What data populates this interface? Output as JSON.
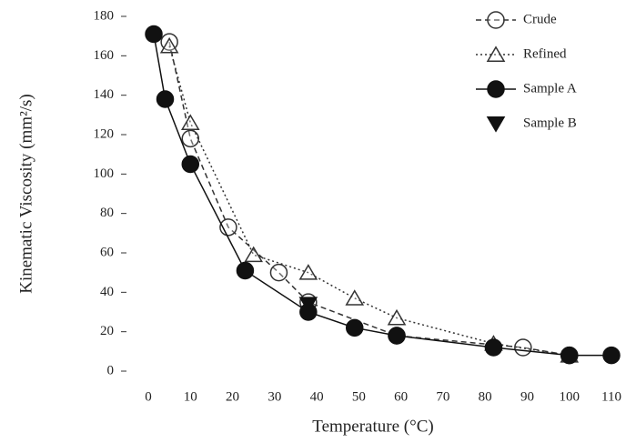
{
  "chart_data": {
    "type": "scatter",
    "x_label": "Temperature (°C)",
    "y_label": "Kinematic Viscosity (mm²/s)",
    "xlim": [
      0,
      110
    ],
    "xticks": [
      0,
      10,
      20,
      30,
      40,
      50,
      60,
      70,
      80,
      90,
      100,
      110
    ],
    "ylim": [
      0,
      180
    ],
    "yticks": [
      0,
      20,
      40,
      60,
      80,
      100,
      120,
      140,
      160,
      180
    ],
    "legend": "upper right",
    "series": [
      {
        "name": "Crude",
        "color": "#333333",
        "marker": "open-circle",
        "line": "dash",
        "x": [
          5,
          10,
          19,
          31,
          38,
          59,
          89,
          100
        ],
        "values": [
          167,
          118,
          73,
          50,
          35,
          18,
          12,
          8
        ]
      },
      {
        "name": "Refined",
        "color": "#333333",
        "marker": "open-triangle",
        "line": "dot",
        "x": [
          5,
          10,
          25,
          38,
          49,
          59,
          82,
          100
        ],
        "values": [
          165,
          126,
          59,
          50,
          37,
          27,
          14,
          8
        ]
      },
      {
        "name": "Sample A",
        "color": "#111111",
        "marker": "filled-circle",
        "line": "solid",
        "x": [
          1.3,
          4,
          10,
          23,
          38,
          49,
          59,
          82,
          100,
          110
        ],
        "values": [
          171,
          138,
          105,
          51,
          30,
          22,
          18,
          12,
          8,
          8
        ]
      },
      {
        "name": "Sample B",
        "color": "#111111",
        "marker": "filled-triangle",
        "line": "none",
        "x": [
          38
        ],
        "values": [
          34
        ]
      }
    ]
  }
}
